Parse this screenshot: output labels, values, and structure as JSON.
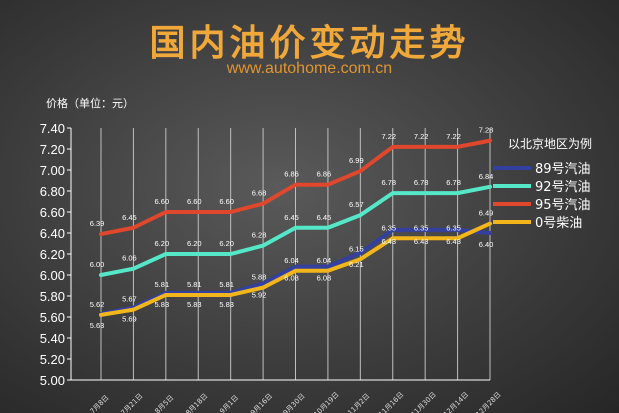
{
  "header": {
    "title": "国内油价变动走势",
    "subtitle": "www.autohome.com.cn"
  },
  "colors": {
    "title": "#f0a83a",
    "grid": "#bfbfbf"
  },
  "chart_data": {
    "type": "line",
    "title": "国内油价变动走势",
    "ylabel": "价格（单位：元）",
    "ylim": [
      5.0,
      7.4
    ],
    "ytick_step": 0.2,
    "grid": "vertical lines at categories",
    "legend": {
      "title": "以北京地区为例",
      "position": "right"
    },
    "categories": [
      "7月8日",
      "7月21日",
      "8月5日",
      "8月18日",
      "9月1日",
      "9月16日",
      "9月30日",
      "10月19日",
      "11月2日",
      "11月16日",
      "11月30日",
      "12月14日",
      "12月28日"
    ],
    "series": [
      {
        "name": "89号汽油",
        "color": "#3340a0",
        "values": [
          5.63,
          5.69,
          5.83,
          5.83,
          5.83,
          5.92,
          6.08,
          6.08,
          6.21,
          6.43,
          6.43,
          6.43,
          6.4
        ],
        "label_position": "below"
      },
      {
        "name": "92号汽油",
        "color": "#55e8c8",
        "values": [
          6.0,
          6.06,
          6.2,
          6.2,
          6.2,
          6.28,
          6.45,
          6.45,
          6.57,
          6.78,
          6.78,
          6.78,
          6.84
        ],
        "label_position": "above"
      },
      {
        "name": "95号汽油",
        "color": "#e0472c",
        "values": [
          6.39,
          6.45,
          6.6,
          6.6,
          6.6,
          6.68,
          6.86,
          6.86,
          6.99,
          7.22,
          7.22,
          7.22,
          7.28
        ],
        "label_position": "above"
      },
      {
        "name": "0号柴油",
        "color": "#f2b61c",
        "values": [
          5.62,
          5.67,
          5.81,
          5.81,
          5.81,
          5.88,
          6.04,
          6.04,
          6.15,
          6.35,
          6.35,
          6.35,
          6.49
        ],
        "label_position": "above"
      }
    ],
    "value_labels": {
      "89号汽油": [
        "5.63",
        "5.69",
        "5.83",
        "5.83",
        "5.83",
        "5.92",
        "6.08",
        "6.08",
        "6.21",
        "6.43",
        "6.43",
        "6.43",
        "6.40"
      ],
      "92号汽油": [
        "6.00",
        "6.06",
        "6.20",
        "6.20",
        "6.20",
        "6.28",
        "6.45",
        "6.45",
        "6.57",
        "6.78",
        "6.78",
        "6.78",
        "6.84"
      ],
      "95号汽油": [
        "6.39",
        "6.45",
        "6.60",
        "6.60",
        "6.60",
        "6.68",
        "6.86",
        "6.86",
        "6.99",
        "7.22",
        "7.22",
        "7.22",
        "7.28"
      ],
      "0号柴油": [
        "5.62",
        "5.67",
        "5.81",
        "5.81",
        "5.81",
        "5.88",
        "6.04",
        "6.04",
        "6.15",
        "6.35",
        "6.35",
        "6.35",
        "6.49"
      ]
    }
  }
}
